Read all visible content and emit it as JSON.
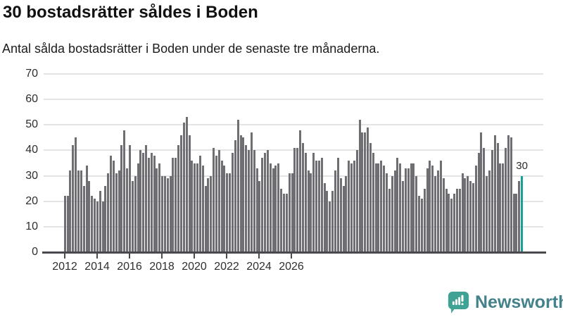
{
  "title": "30 bostadsrätter såldes i Boden",
  "subtitle": "Antal sålda bostadsrätter i Boden under de senaste tre månaderna.",
  "annotation": {
    "label": "30"
  },
  "branding": {
    "name": "Newsworthy",
    "icon": "newsworthy-chart-bubble-icon"
  },
  "colors": {
    "bar": "#6e6e73",
    "highlight": "#17a099",
    "axis": "#4a4a4e",
    "grid": "#e4e4e4",
    "title_text": "#111111",
    "tick_text": "#2e2e2e",
    "brand_icon": "#3fa294",
    "brand_text": "#44828b"
  },
  "chart_data": {
    "type": "bar",
    "title": "30 bostadsrätter såldes i Boden",
    "subtitle": "Antal sålda bostadsrätter i Boden under de senaste tre månaderna.",
    "xlabel": "",
    "ylabel": "",
    "ylim": [
      0,
      70
    ],
    "y_ticks": [
      0,
      10,
      20,
      30,
      40,
      50,
      60,
      70
    ],
    "x_tick_labels": [
      "2012",
      "2014",
      "2016",
      "2018",
      "2020",
      "2022",
      "2024",
      "2026"
    ],
    "frequency": "monthly",
    "start_period": "2012-01",
    "end_period": "2026-02",
    "grid": true,
    "highlight_last_value": 30,
    "values": [
      22,
      22,
      32,
      42,
      45,
      32,
      32,
      26,
      34,
      28,
      22,
      21,
      20,
      24,
      20,
      26,
      31,
      38,
      36,
      31,
      32,
      42,
      48,
      33,
      42,
      28,
      30,
      35,
      40,
      39,
      42,
      37,
      39,
      38,
      33,
      35,
      30,
      30,
      29,
      30,
      37,
      37,
      42,
      46,
      51,
      53,
      46,
      36,
      35,
      35,
      38,
      34,
      26,
      29,
      30,
      41,
      38,
      40,
      36,
      34,
      31,
      31,
      39,
      44,
      52,
      46,
      45,
      42,
      40,
      47,
      40,
      33,
      28,
      37,
      39,
      40,
      35,
      33,
      34,
      35,
      25,
      23,
      23,
      31,
      31,
      41,
      41,
      48,
      43,
      39,
      32,
      31,
      39,
      36,
      36,
      37,
      27,
      24,
      20,
      24,
      32,
      37,
      29,
      26,
      30,
      36,
      35,
      36,
      40,
      52,
      47,
      47,
      49,
      43,
      39,
      35,
      35,
      36,
      34,
      31,
      25,
      30,
      32,
      37,
      35,
      28,
      33,
      33,
      35,
      35,
      30,
      22,
      21,
      25,
      33,
      36,
      34,
      30,
      32,
      36,
      29,
      25,
      23,
      21,
      23,
      25,
      25,
      31,
      29,
      30,
      28,
      27,
      34,
      39,
      47,
      41,
      30,
      32,
      40,
      46,
      43,
      35,
      35,
      41,
      46,
      45,
      23,
      23,
      28,
      30
    ]
  }
}
